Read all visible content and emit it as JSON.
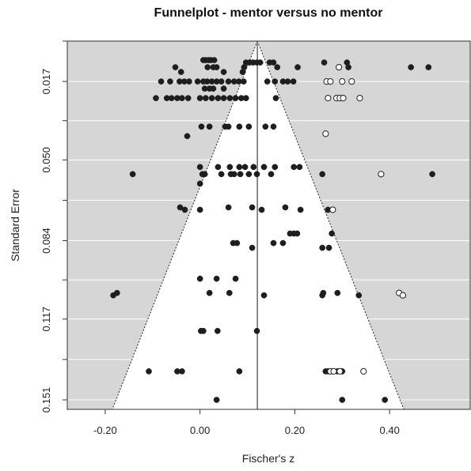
{
  "chart_data": {
    "type": "scatter",
    "title": "Funnelplot - mentor versus no mentor",
    "xlabel": "Fischer's z",
    "ylabel": "Standard Error",
    "xlim": [
      -0.28,
      0.57
    ],
    "ylim": [
      0.155,
      0.0
    ],
    "x_ticks": [
      -0.2,
      0.0,
      0.2,
      0.4
    ],
    "x_tick_labels": [
      "-0.20",
      "0.00",
      "0.20",
      "0.40"
    ],
    "y_ticks": [
      0.017,
      0.05,
      0.084,
      0.117,
      0.151
    ],
    "y_tick_labels": [
      "0.017",
      "0.050",
      "0.084",
      "0.117",
      "0.151"
    ],
    "y_gridlines": [
      0.0,
      0.017,
      0.0335,
      0.05,
      0.067,
      0.084,
      0.1005,
      0.117,
      0.134,
      0.151
    ],
    "grid": true,
    "background": "#d6d6d6",
    "funnel_color": "#ffffff",
    "point_color": "#1e1e1e",
    "summary_estimate": 0.121,
    "funnel_apex": [
      0.121,
      0.0
    ],
    "funnel_base": [
      -0.185,
      0.43
    ],
    "funnel_base_se": 0.155,
    "series": [
      {
        "filled": true,
        "points": [
          [
            0.007,
            0.008
          ],
          [
            0.012,
            0.008
          ],
          [
            0.018,
            0.008
          ],
          [
            0.023,
            0.008
          ],
          [
            0.03,
            0.008
          ],
          [
            0.097,
            0.009
          ],
          [
            0.105,
            0.009
          ],
          [
            0.112,
            0.009
          ],
          [
            0.12,
            0.009
          ],
          [
            0.127,
            0.009
          ],
          [
            0.147,
            0.009
          ],
          [
            0.155,
            0.009
          ],
          [
            0.262,
            0.009
          ],
          [
            0.31,
            0.009
          ],
          [
            -0.052,
            0.011
          ],
          [
            0.016,
            0.011
          ],
          [
            0.028,
            0.011
          ],
          [
            0.035,
            0.011
          ],
          [
            0.093,
            0.011
          ],
          [
            0.163,
            0.011
          ],
          [
            0.206,
            0.011
          ],
          [
            0.313,
            0.011
          ],
          [
            0.445,
            0.011
          ],
          [
            0.482,
            0.011
          ],
          [
            -0.04,
            0.013
          ],
          [
            0.05,
            0.013
          ],
          [
            0.09,
            0.013
          ],
          [
            -0.082,
            0.017
          ],
          [
            -0.063,
            0.017
          ],
          [
            -0.043,
            0.017
          ],
          [
            -0.033,
            0.017
          ],
          [
            -0.023,
            0.017
          ],
          [
            -0.005,
            0.017
          ],
          [
            0.007,
            0.017
          ],
          [
            0.015,
            0.017
          ],
          [
            0.025,
            0.017
          ],
          [
            0.035,
            0.017
          ],
          [
            0.045,
            0.017
          ],
          [
            0.06,
            0.017
          ],
          [
            0.072,
            0.017
          ],
          [
            0.082,
            0.017
          ],
          [
            0.092,
            0.017
          ],
          [
            0.142,
            0.017
          ],
          [
            0.158,
            0.017
          ],
          [
            0.175,
            0.017
          ],
          [
            0.185,
            0.017
          ],
          [
            0.197,
            0.017
          ],
          [
            0.01,
            0.02
          ],
          [
            0.02,
            0.02
          ],
          [
            0.028,
            0.02
          ],
          [
            0.05,
            0.02
          ],
          [
            -0.093,
            0.024
          ],
          [
            -0.07,
            0.024
          ],
          [
            -0.06,
            0.024
          ],
          [
            -0.048,
            0.024
          ],
          [
            -0.038,
            0.024
          ],
          [
            -0.025,
            0.024
          ],
          [
            0.0,
            0.024
          ],
          [
            0.012,
            0.024
          ],
          [
            0.025,
            0.024
          ],
          [
            0.038,
            0.024
          ],
          [
            0.05,
            0.024
          ],
          [
            0.063,
            0.024
          ],
          [
            0.075,
            0.024
          ],
          [
            0.087,
            0.024
          ],
          [
            0.097,
            0.024
          ],
          [
            0.16,
            0.024
          ],
          [
            0.003,
            0.036
          ],
          [
            0.02,
            0.036
          ],
          [
            0.053,
            0.036
          ],
          [
            0.06,
            0.036
          ],
          [
            0.083,
            0.036
          ],
          [
            0.103,
            0.036
          ],
          [
            0.138,
            0.036
          ],
          [
            0.155,
            0.036
          ],
          [
            -0.027,
            0.04
          ],
          [
            0.0,
            0.053
          ],
          [
            0.038,
            0.053
          ],
          [
            0.063,
            0.053
          ],
          [
            0.083,
            0.053
          ],
          [
            0.095,
            0.053
          ],
          [
            0.113,
            0.053
          ],
          [
            0.135,
            0.053
          ],
          [
            0.158,
            0.053
          ],
          [
            0.198,
            0.053
          ],
          [
            0.21,
            0.053
          ],
          [
            -0.142,
            0.056
          ],
          [
            0.005,
            0.056
          ],
          [
            0.01,
            0.056
          ],
          [
            0.045,
            0.056
          ],
          [
            0.065,
            0.056
          ],
          [
            0.072,
            0.056
          ],
          [
            0.085,
            0.056
          ],
          [
            0.103,
            0.056
          ],
          [
            0.12,
            0.056
          ],
          [
            0.15,
            0.056
          ],
          [
            0.258,
            0.056
          ],
          [
            0.49,
            0.056
          ],
          [
            0.0,
            0.06
          ],
          [
            -0.042,
            0.07
          ],
          [
            -0.032,
            0.071
          ],
          [
            0.0,
            0.071
          ],
          [
            0.06,
            0.07
          ],
          [
            0.11,
            0.07
          ],
          [
            0.13,
            0.071
          ],
          [
            0.18,
            0.07
          ],
          [
            0.212,
            0.071
          ],
          [
            0.27,
            0.071
          ],
          [
            0.19,
            0.081
          ],
          [
            0.198,
            0.081
          ],
          [
            0.205,
            0.081
          ],
          [
            0.278,
            0.081
          ],
          [
            0.155,
            0.085
          ],
          [
            0.175,
            0.085
          ],
          [
            0.07,
            0.085
          ],
          [
            0.078,
            0.085
          ],
          [
            0.11,
            0.087
          ],
          [
            0.258,
            0.087
          ],
          [
            0.272,
            0.087
          ],
          [
            -0.183,
            0.107
          ],
          [
            -0.175,
            0.106
          ],
          [
            0.02,
            0.106
          ],
          [
            0.062,
            0.106
          ],
          [
            0.135,
            0.107
          ],
          [
            0.258,
            0.107
          ],
          [
            0.26,
            0.106
          ],
          [
            0.29,
            0.106
          ],
          [
            0.335,
            0.107
          ],
          [
            0.0,
            0.1
          ],
          [
            0.035,
            0.1
          ],
          [
            0.075,
            0.1
          ],
          [
            0.002,
            0.122
          ],
          [
            0.007,
            0.122
          ],
          [
            0.037,
            0.122
          ],
          [
            0.12,
            0.122
          ],
          [
            -0.108,
            0.139
          ],
          [
            -0.048,
            0.139
          ],
          [
            -0.038,
            0.139
          ],
          [
            0.083,
            0.139
          ],
          [
            0.265,
            0.139
          ],
          [
            0.27,
            0.139
          ],
          [
            0.275,
            0.139
          ],
          [
            0.29,
            0.139
          ],
          [
            0.3,
            0.139
          ],
          [
            0.035,
            0.151
          ],
          [
            0.3,
            0.151
          ],
          [
            0.39,
            0.151
          ]
        ]
      },
      {
        "filled": false,
        "points": [
          [
            0.293,
            0.011
          ],
          [
            0.267,
            0.017
          ],
          [
            0.275,
            0.017
          ],
          [
            0.3,
            0.017
          ],
          [
            0.32,
            0.017
          ],
          [
            0.27,
            0.024
          ],
          [
            0.288,
            0.024
          ],
          [
            0.295,
            0.024
          ],
          [
            0.302,
            0.024
          ],
          [
            0.337,
            0.024
          ],
          [
            0.265,
            0.039
          ],
          [
            0.382,
            0.056
          ],
          [
            0.28,
            0.071
          ],
          [
            0.42,
            0.106
          ],
          [
            0.428,
            0.107
          ],
          [
            0.275,
            0.139
          ],
          [
            0.282,
            0.139
          ],
          [
            0.295,
            0.139
          ],
          [
            0.345,
            0.139
          ]
        ]
      }
    ]
  }
}
